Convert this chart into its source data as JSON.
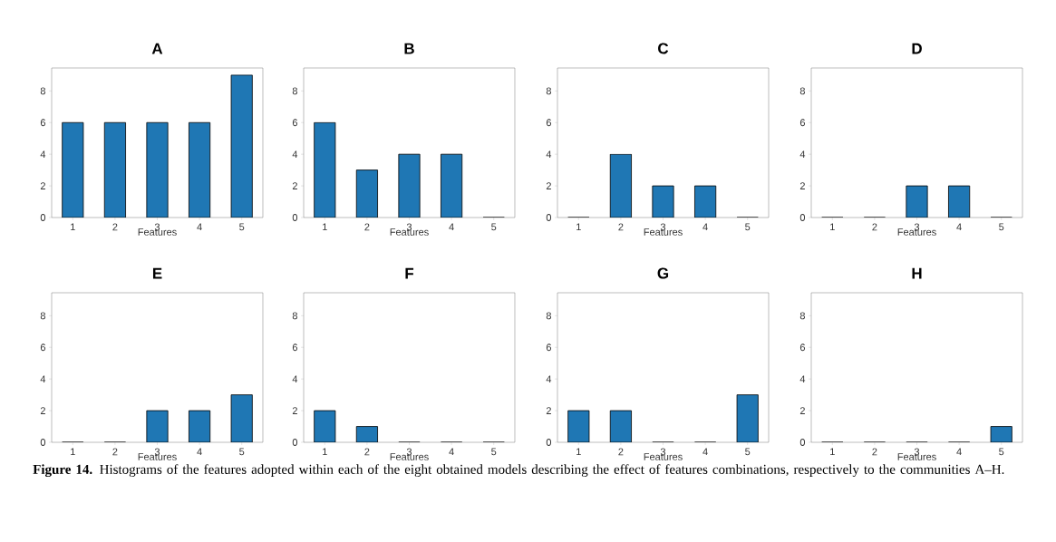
{
  "chart_data": [
    {
      "type": "bar",
      "title": "A",
      "xlabel": "Features",
      "categories": [
        "1",
        "2",
        "3",
        "4",
        "5"
      ],
      "values": [
        6,
        6,
        6,
        6,
        9
      ],
      "color": "#1f77b4",
      "ylim": [
        0,
        9.45
      ],
      "yticks": [
        0,
        2,
        4,
        6,
        8
      ]
    },
    {
      "type": "bar",
      "title": "B",
      "xlabel": "Features",
      "categories": [
        "1",
        "2",
        "3",
        "4",
        "5"
      ],
      "values": [
        6,
        3,
        4,
        4,
        0
      ],
      "color": "#1f77b4",
      "ylim": [
        0,
        9.45
      ],
      "yticks": [
        0,
        2,
        4,
        6,
        8
      ]
    },
    {
      "type": "bar",
      "title": "C",
      "xlabel": "Features",
      "categories": [
        "1",
        "2",
        "3",
        "4",
        "5"
      ],
      "values": [
        0,
        4,
        2,
        2,
        0
      ],
      "color": "#1f77b4",
      "ylim": [
        0,
        9.45
      ],
      "yticks": [
        0,
        2,
        4,
        6,
        8
      ]
    },
    {
      "type": "bar",
      "title": "D",
      "xlabel": "Features",
      "categories": [
        "1",
        "2",
        "3",
        "4",
        "5"
      ],
      "values": [
        0,
        0,
        2,
        2,
        0
      ],
      "color": "#1f77b4",
      "ylim": [
        0,
        9.45
      ],
      "yticks": [
        0,
        2,
        4,
        6,
        8
      ]
    },
    {
      "type": "bar",
      "title": "E",
      "xlabel": "Features",
      "categories": [
        "1",
        "2",
        "3",
        "4",
        "5"
      ],
      "values": [
        0,
        0,
        2,
        2,
        3
      ],
      "color": "#1f77b4",
      "ylim": [
        0,
        9.45
      ],
      "yticks": [
        0,
        2,
        4,
        6,
        8
      ]
    },
    {
      "type": "bar",
      "title": "F",
      "xlabel": "Features",
      "categories": [
        "1",
        "2",
        "3",
        "4",
        "5"
      ],
      "values": [
        2,
        1,
        0,
        0,
        0
      ],
      "color": "#1f77b4",
      "ylim": [
        0,
        9.45
      ],
      "yticks": [
        0,
        2,
        4,
        6,
        8
      ]
    },
    {
      "type": "bar",
      "title": "G",
      "xlabel": "Features",
      "categories": [
        "1",
        "2",
        "3",
        "4",
        "5"
      ],
      "values": [
        2,
        2,
        0,
        0,
        3
      ],
      "color": "#1f77b4",
      "ylim": [
        0,
        9.45
      ],
      "yticks": [
        0,
        2,
        4,
        6,
        8
      ]
    },
    {
      "type": "bar",
      "title": "H",
      "xlabel": "Features",
      "categories": [
        "1",
        "2",
        "3",
        "4",
        "5"
      ],
      "values": [
        0,
        0,
        0,
        0,
        1
      ],
      "color": "#1f77b4",
      "ylim": [
        0,
        9.45
      ],
      "yticks": [
        0,
        2,
        4,
        6,
        8
      ],
      "annotations": [
        "**Figure 14.** Histograms of the features adopted within each of the eight obtained models describing the effect of features combinations, respectively to the communities A–H."
      ]
    }
  ]
}
